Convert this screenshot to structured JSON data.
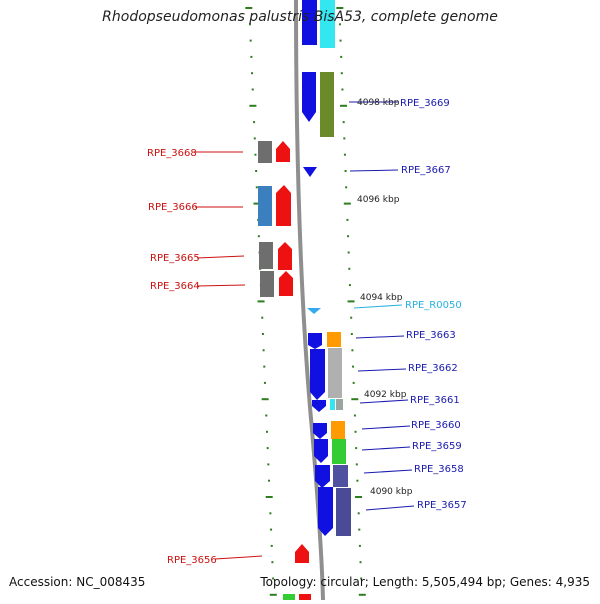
{
  "title": "Rhodopseudomonas palustris BisA53, complete genome",
  "footer": {
    "accession": "Accession: NC_008435",
    "topology": "Topology: circular; Length: 5,505,494 bp; Genes: 4,935"
  },
  "colors": {
    "background": "#ffffff",
    "backbone": "#8f8f8f",
    "tick_green": "#2e7d1e",
    "label_red": "#cc1111",
    "label_blue": "#1a1ab0",
    "label_cyan": "#2ab0e0"
  },
  "scale_labels": [
    "4098 kbp",
    "4096 kbp",
    "4094 kbp",
    "4092 kbp",
    "4090 kbp"
  ],
  "genes_left": [
    {
      "label": "RPE_3668"
    },
    {
      "label": "RPE_3666"
    },
    {
      "label": "RPE_3665"
    },
    {
      "label": "RPE_3664"
    },
    {
      "label": "RPE_3656"
    }
  ],
  "genes_right": [
    {
      "label": "RPE_3669"
    },
    {
      "label": "RPE_3667"
    },
    {
      "label": "RPE_R0050"
    },
    {
      "label": "RPE_3663"
    },
    {
      "label": "RPE_3662"
    },
    {
      "label": "RPE_3661"
    },
    {
      "label": "RPE_3660"
    },
    {
      "label": "RPE_3659"
    },
    {
      "label": "RPE_3658"
    },
    {
      "label": "RPE_3657"
    }
  ]
}
